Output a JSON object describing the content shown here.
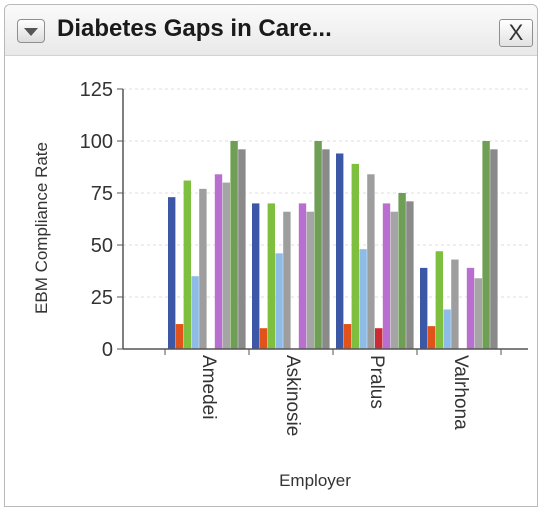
{
  "window": {
    "title": "Diabetes Gaps in Care...",
    "close_label": "X",
    "collapse_icon": "chevron-down-icon"
  },
  "chart_data": {
    "type": "bar",
    "categories": [
      "Amedei",
      "Askinosie",
      "Pralus",
      "Valrhona"
    ],
    "ylabel": "EBM Compliance Rate",
    "xlabel": "Employer",
    "ylim": [
      0,
      125
    ],
    "yticks": [
      0,
      25,
      50,
      75,
      100,
      125
    ],
    "grid": true,
    "legend": "none",
    "series": [
      {
        "color": "#3b57a6",
        "values": [
          73,
          70,
          94,
          39
        ]
      },
      {
        "color": "#e0541c",
        "values": [
          12,
          10,
          12,
          11
        ]
      },
      {
        "color": "#7fbf3f",
        "values": [
          81,
          70,
          89,
          47
        ]
      },
      {
        "color": "#8fbce6",
        "values": [
          35,
          46,
          48,
          19
        ]
      },
      {
        "color": "#9e9e9e",
        "values": [
          77,
          66,
          84,
          43
        ]
      },
      {
        "color": "#cc2b36",
        "values": [
          null,
          null,
          10,
          null
        ]
      },
      {
        "color": "#b86fcf",
        "values": [
          84,
          70,
          70,
          39
        ]
      },
      {
        "color": "#a5a5a5",
        "values": [
          80,
          66,
          66,
          34
        ]
      },
      {
        "color": "#6e9f55",
        "values": [
          100,
          100,
          75,
          100
        ]
      },
      {
        "color": "#8a8a8a",
        "values": [
          96,
          96,
          71,
          96
        ]
      }
    ]
  }
}
